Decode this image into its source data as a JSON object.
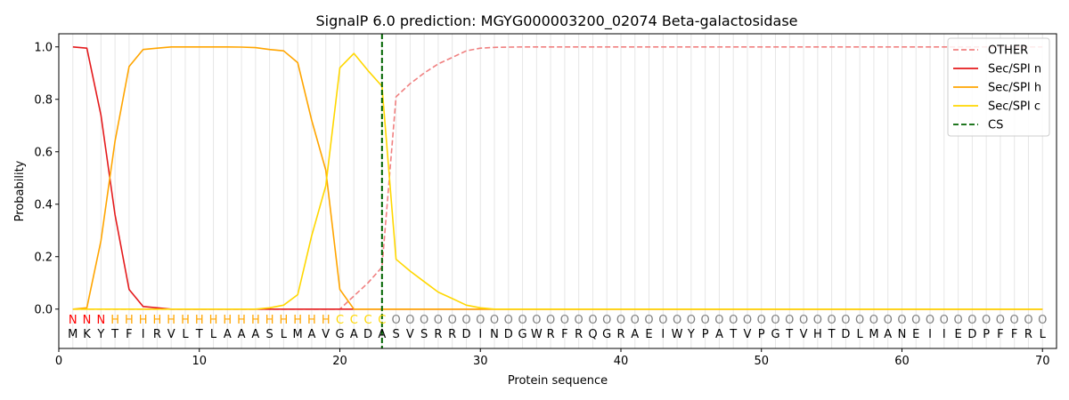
{
  "chart_data": {
    "type": "line",
    "title": "SignalP 6.0 prediction: MGYG000003200_02074 Beta-galactosidase",
    "xlabel": "Protein sequence",
    "ylabel": "Probability",
    "xlim": [
      0,
      71
    ],
    "ylim": [
      -0.15,
      1.05
    ],
    "x_ticks": [
      0,
      10,
      20,
      30,
      40,
      50,
      60,
      70
    ],
    "y_ticks": [
      0.0,
      0.2,
      0.4,
      0.6,
      0.8,
      1.0
    ],
    "x_tick_labels": [
      "0",
      "10",
      "20",
      "30",
      "40",
      "50",
      "60",
      "70"
    ],
    "y_tick_labels": [
      "0.0",
      "0.2",
      "0.4",
      "0.6",
      "0.8",
      "1.0"
    ],
    "grid": "vertical lines at each residue",
    "legend_position": "top-right",
    "sequence": [
      "M",
      "K",
      "Y",
      "T",
      "F",
      "I",
      "R",
      "V",
      "L",
      "T",
      "L",
      "A",
      "A",
      "A",
      "S",
      "L",
      "M",
      "A",
      "V",
      "G",
      "A",
      "D",
      "A",
      "S",
      "V",
      "S",
      "R",
      "R",
      "D",
      "I",
      "N",
      "D",
      "G",
      "W",
      "R",
      "F",
      "R",
      "Q",
      "G",
      "R",
      "A",
      "E",
      "I",
      "W",
      "Y",
      "P",
      "A",
      "T",
      "V",
      "P",
      "G",
      "T",
      "V",
      "H",
      "T",
      "D",
      "L",
      "M",
      "A",
      "N",
      "E",
      "I",
      "I",
      "E",
      "D",
      "P",
      "F",
      "F",
      "R",
      "L"
    ],
    "regions": [
      "N",
      "N",
      "N",
      "H",
      "H",
      "H",
      "H",
      "H",
      "H",
      "H",
      "H",
      "H",
      "H",
      "H",
      "H",
      "H",
      "H",
      "H",
      "H",
      "C",
      "C",
      "C",
      "C",
      "O",
      "O",
      "O",
      "O",
      "O",
      "O",
      "O",
      "O",
      "O",
      "O",
      "O",
      "O",
      "O",
      "O",
      "O",
      "O",
      "O",
      "O",
      "O",
      "O",
      "O",
      "O",
      "O",
      "O",
      "O",
      "O",
      "O",
      "O",
      "O",
      "O",
      "O",
      "O",
      "O",
      "O",
      "O",
      "O",
      "O",
      "O",
      "O",
      "O",
      "O",
      "O",
      "O",
      "O",
      "O",
      "O",
      "O"
    ],
    "region_colors": {
      "N": "#ff0000",
      "H": "#ffa500",
      "C": "#ffd700",
      "O": "#808080"
    },
    "cleavage_site": 23,
    "series": [
      {
        "name": "OTHER",
        "color": "#f08080",
        "dash": "dashed",
        "values": [
          0,
          0,
          0,
          0,
          0,
          0,
          0,
          0,
          0,
          0,
          0,
          0,
          0,
          0,
          0,
          0,
          0,
          0,
          0,
          0.0,
          0.05,
          0.1,
          0.16,
          0.81,
          0.86,
          0.9,
          0.935,
          0.96,
          0.985,
          0.995,
          0.998,
          0.999,
          1,
          1,
          1,
          1,
          1,
          1,
          1,
          1,
          1,
          1,
          1,
          1,
          1,
          1,
          1,
          1,
          1,
          1,
          1,
          1,
          1,
          1,
          1,
          1,
          1,
          1,
          1,
          1,
          1,
          1,
          1,
          1,
          1,
          1,
          1,
          1,
          1,
          1
        ]
      },
      {
        "name": "Sec/SPI n",
        "color": "#e41a1c",
        "dash": "solid",
        "values": [
          1.0,
          0.995,
          0.74,
          0.36,
          0.075,
          0.01,
          0.005,
          0,
          0,
          0,
          0,
          0,
          0,
          0,
          0,
          0,
          0,
          0,
          0,
          0,
          0,
          0,
          0,
          0,
          0,
          0,
          0,
          0,
          0,
          0,
          0,
          0,
          0,
          0,
          0,
          0,
          0,
          0,
          0,
          0,
          0,
          0,
          0,
          0,
          0,
          0,
          0,
          0,
          0,
          0,
          0,
          0,
          0,
          0,
          0,
          0,
          0,
          0,
          0,
          0,
          0,
          0,
          0,
          0,
          0,
          0,
          0,
          0,
          0,
          0
        ]
      },
      {
        "name": "Sec/SPI h",
        "color": "#ffa500",
        "dash": "solid",
        "values": [
          0,
          0.005,
          0.26,
          0.64,
          0.925,
          0.99,
          0.995,
          1.0,
          1.0,
          1.0,
          1.0,
          1.0,
          0.999,
          0.997,
          0.99,
          0.985,
          0.94,
          0.72,
          0.53,
          0.075,
          0,
          0,
          0,
          0,
          0,
          0,
          0,
          0,
          0,
          0,
          0,
          0,
          0,
          0,
          0,
          0,
          0,
          0,
          0,
          0,
          0,
          0,
          0,
          0,
          0,
          0,
          0,
          0,
          0,
          0,
          0,
          0,
          0,
          0,
          0,
          0,
          0,
          0,
          0,
          0,
          0,
          0,
          0,
          0,
          0,
          0,
          0,
          0,
          0,
          0
        ]
      },
      {
        "name": "Sec/SPI c",
        "color": "#ffd700",
        "dash": "solid",
        "values": [
          0,
          0,
          0,
          0,
          0,
          0,
          0,
          0,
          0,
          0,
          0,
          0,
          0,
          0,
          0.005,
          0.015,
          0.055,
          0.28,
          0.47,
          0.92,
          0.975,
          0.91,
          0.85,
          0.19,
          0.145,
          0.105,
          0.065,
          0.04,
          0.015,
          0.005,
          0,
          0,
          0,
          0,
          0,
          0,
          0,
          0,
          0,
          0,
          0,
          0,
          0,
          0,
          0,
          0,
          0,
          0,
          0,
          0,
          0,
          0,
          0,
          0,
          0,
          0,
          0,
          0,
          0,
          0,
          0,
          0,
          0,
          0,
          0,
          0,
          0,
          0,
          0,
          0
        ]
      }
    ],
    "legend": [
      "OTHER",
      "Sec/SPI n",
      "Sec/SPI h",
      "Sec/SPI c",
      "CS"
    ],
    "cs_color": "#006400"
  }
}
